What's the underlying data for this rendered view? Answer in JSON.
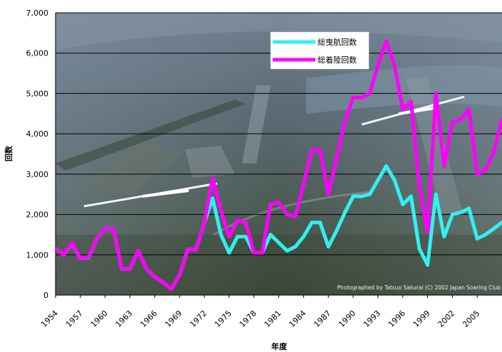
{
  "chart_data": {
    "type": "line",
    "xlabel": "年度",
    "ylabel": "回数",
    "ylim": [
      0,
      7000
    ],
    "y_ticks": [
      "0",
      "1,000",
      "2,000",
      "3,000",
      "4,000",
      "5,000",
      "6,000",
      "7,000"
    ],
    "x_range": [
      1954,
      2008
    ],
    "x_tick_labels": [
      "1954",
      "1957",
      "1960",
      "1963",
      "1966",
      "1969",
      "1972",
      "1975",
      "1978",
      "1981",
      "1984",
      "1987",
      "1990",
      "1993",
      "1996",
      "1999",
      "2002",
      "2005"
    ],
    "grid": true,
    "legend": "top-right",
    "background": "aerial photograph with gliders",
    "x": [
      1954,
      1955,
      1956,
      1957,
      1958,
      1959,
      1960,
      1961,
      1962,
      1963,
      1964,
      1965,
      1966,
      1967,
      1968,
      1969,
      1970,
      1971,
      1972,
      1973,
      1974,
      1975,
      1976,
      1977,
      1978,
      1979,
      1980,
      1981,
      1982,
      1983,
      1984,
      1985,
      1986,
      1987,
      1988,
      1989,
      1990,
      1991,
      1992,
      1993,
      1994,
      1995,
      1996,
      1997,
      1998,
      1999,
      2000,
      2001,
      2002,
      2003,
      2004,
      2005,
      2006,
      2007,
      2008
    ],
    "series": [
      {
        "name": "総曳航回数",
        "color": "#33f0f0",
        "values": [
          1150,
          1000,
          1280,
          900,
          940,
          1400,
          1650,
          1650,
          650,
          650,
          1100,
          650,
          450,
          320,
          150,
          500,
          1130,
          1130,
          1800,
          2400,
          1500,
          1050,
          1450,
          1450,
          1050,
          1050,
          1500,
          1300,
          1100,
          1200,
          1450,
          1800,
          1800,
          1200,
          1600,
          2050,
          2450,
          2450,
          2500,
          2850,
          3200,
          2850,
          2250,
          2450,
          1150,
          750,
          2500,
          1450,
          2000,
          2050,
          2150,
          1400,
          1500,
          1650,
          1800
        ]
      },
      {
        "name": "総着陸回数",
        "color": "#ff00ff",
        "values": [
          1150,
          1000,
          1300,
          900,
          950,
          1400,
          1650,
          1650,
          650,
          650,
          1100,
          650,
          450,
          320,
          150,
          500,
          1130,
          1130,
          1800,
          2900,
          2100,
          1450,
          1850,
          1800,
          1050,
          1050,
          2250,
          2300,
          2000,
          1950,
          2750,
          3600,
          3600,
          2500,
          3400,
          4300,
          4900,
          4900,
          5000,
          5700,
          6300,
          5700,
          4600,
          4800,
          2700,
          1550,
          5000,
          3200,
          4300,
          4350,
          4600,
          3000,
          3100,
          3550,
          4350
        ]
      }
    ]
  },
  "photo_credit": "Photographed by Tatsuo Sakurai (C) 2002 Japan Soaring Club"
}
